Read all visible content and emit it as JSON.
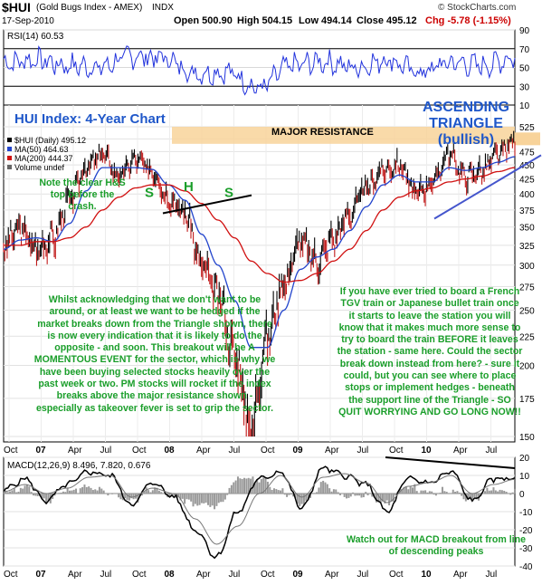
{
  "header": {
    "symbol": "$HUI",
    "name": "(Gold Bugs Index - AMEX)",
    "type": "INDX",
    "date": "17-Sep-2010",
    "open": "Open 500.90",
    "high": "High 504.15",
    "low": "Low 494.14",
    "close": "Close 495.12",
    "chg": "Chg -5.78 (-1.15%)",
    "brand": "© StockCharts.com"
  },
  "colors": {
    "price": "#000000",
    "ma50": "#2244cc",
    "ma200": "#d01010",
    "rsi": "#2233dd",
    "annotation": "#1a9e2a",
    "title": "#1f57c9",
    "resistance": "#f8d39a",
    "trendline": "#4455cc"
  },
  "chart_data": [
    {
      "type": "line",
      "panel": "RSI",
      "label": "RSI(14) 60.53",
      "ylim": [
        10,
        90
      ],
      "yticks": [
        10,
        30,
        50,
        70,
        90
      ],
      "levels": [
        30,
        70
      ],
      "x": [
        "Oct 06",
        "Jan 07",
        "Apr 07",
        "Jul 07",
        "Oct 07",
        "Jan 08",
        "Apr 08",
        "Jul 08",
        "Oct 08",
        "Jan 09",
        "Apr 09",
        "Jul 09",
        "Oct 09",
        "Jan 10",
        "Apr 10",
        "Jul 10",
        "Sep 10"
      ],
      "values": [
        55,
        58,
        52,
        50,
        62,
        60,
        44,
        45,
        28,
        52,
        56,
        50,
        58,
        45,
        55,
        52,
        60.53
      ]
    },
    {
      "type": "line",
      "panel": "Price",
      "title": "HUI Index: 4-Year Chart",
      "legend": [
        "$HUI (Daily) 495.12",
        "MA(50) 464.63",
        "MA(200) 444.37",
        "Volume undef"
      ],
      "ylim": [
        150,
        525
      ],
      "ylabels": [
        150,
        175,
        200,
        225,
        250,
        275,
        300,
        325,
        350,
        375,
        400,
        425,
        450,
        475,
        500,
        525
      ],
      "xlabels": [
        "Oct",
        "07",
        "Apr",
        "Jul",
        "Oct",
        "08",
        "Apr",
        "Jul",
        "Oct",
        "09",
        "Apr",
        "Jul",
        "Oct",
        "10",
        "Apr",
        "Jul"
      ],
      "series": [
        {
          "name": "$HUI (Daily)",
          "values": [
            325,
            348,
            320,
            335,
            390,
            445,
            470,
            430,
            460,
            440,
            395,
            370,
            300,
            265,
            210,
            155,
            225,
            280,
            330,
            305,
            335,
            370,
            410,
            440,
            450,
            400,
            420,
            470,
            430,
            440,
            470,
            495
          ]
        },
        {
          "name": "MA(50)",
          "values": [
            320,
            332,
            335,
            330,
            355,
            405,
            445,
            445,
            445,
            442,
            415,
            390,
            340,
            300,
            260,
            215,
            215,
            250,
            295,
            310,
            320,
            345,
            380,
            415,
            432,
            420,
            420,
            445,
            440,
            445,
            455,
            465
          ]
        },
        {
          "name": "MA(200)",
          "values": [
            325,
            325,
            330,
            330,
            335,
            350,
            375,
            395,
            410,
            415,
            415,
            405,
            385,
            360,
            335,
            305,
            290,
            280,
            282,
            290,
            305,
            320,
            345,
            375,
            395,
            405,
            410,
            420,
            425,
            430,
            438,
            445
          ]
        }
      ],
      "x_positions": [
        0,
        0.032,
        0.065,
        0.097,
        0.129,
        0.161,
        0.194,
        0.226,
        0.258,
        0.29,
        0.323,
        0.355,
        0.387,
        0.419,
        0.452,
        0.484,
        0.516,
        0.548,
        0.581,
        0.613,
        0.645,
        0.677,
        0.71,
        0.742,
        0.774,
        0.806,
        0.839,
        0.871,
        0.903,
        0.935,
        0.968,
        1
      ],
      "annotations": {
        "resistance": "MAJOR RESISTANCE",
        "triangle": "ASCENDING TRIANGLE (bullish)",
        "hs_note": "Note the clear H&S top before the crash.",
        "S1": "S",
        "H": "H",
        "S2": "S",
        "left_text": "Whilst acknowledging that we don't want to be around, or at least we want to be hedged if the market breaks down from the Triangle shown, there is now every indication that it is likely to do the opposite - and soon. This breakout will be A MOMENTOUS EVENT for the sector, which is why we have been buying selected stocks heavily over the past week or two. PM stocks will rocket if the index breaks above the major resistance shown - especially as takeover fever is set to grip the sector.",
        "right_text": "If you have ever tried to board a French TGV train or Japanese bullet train once it starts to leave the station you will know that it makes much more sense to try to board the train BEFORE it leaves the station - same here. Could the sector break down instead from here? - sure it could, but you can see where to place stops or implement hedges - beneath the support line of the Triangle - SO QUIT WORRYING AND GO LONG NOW!!"
      }
    },
    {
      "type": "line",
      "panel": "MACD",
      "label": "MACD(12,26,9) 8.496, 7.820, 0.676",
      "ylim": [
        -40,
        20
      ],
      "yticks": [
        -40,
        -30,
        -20,
        -10,
        0,
        10,
        20
      ],
      "series": [
        {
          "name": "MACD",
          "values": [
            2,
            8,
            -4,
            5,
            12,
            10,
            -6,
            6,
            -2,
            -20,
            -35,
            -10,
            8,
            12,
            -8,
            14,
            10,
            5,
            -10,
            8,
            6,
            12,
            -4,
            8,
            8.496
          ]
        },
        {
          "name": "Signal",
          "values": [
            1,
            5,
            0,
            3,
            9,
            10,
            -2,
            3,
            0,
            -14,
            -28,
            -18,
            0,
            10,
            -2,
            9,
            11,
            6,
            -5,
            4,
            6,
            10,
            0,
            5,
            7.82
          ]
        },
        {
          "name": "Histogram",
          "values": [
            1,
            3,
            -4,
            2,
            3,
            0,
            -4,
            3,
            -2,
            -6,
            -7,
            8,
            8,
            2,
            -6,
            5,
            -1,
            -1,
            -5,
            4,
            0,
            2,
            -4,
            3,
            0.676
          ]
        }
      ],
      "note": "Watch out for MACD breakout from line of descending peaks"
    }
  ]
}
